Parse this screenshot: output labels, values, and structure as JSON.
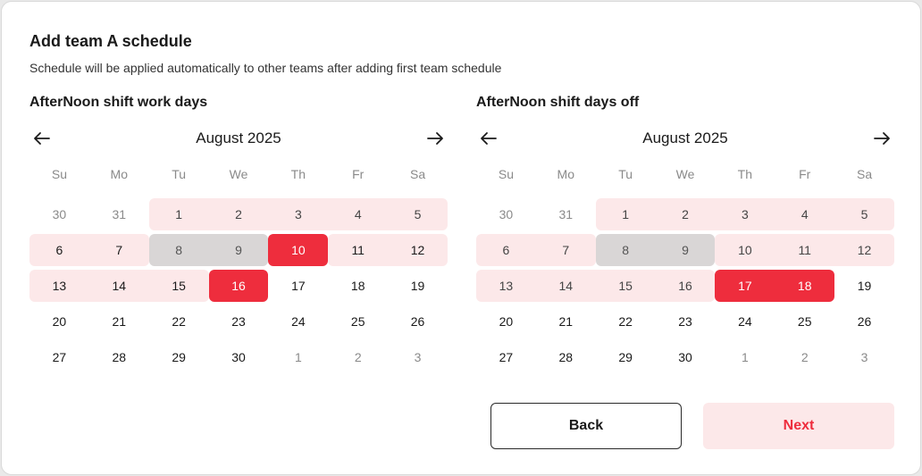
{
  "header": {
    "title": "Add team A schedule",
    "subtitle": "Schedule will be applied automatically to other teams after adding first team schedule"
  },
  "calendars": [
    {
      "label": "AfterNoon shift work days",
      "month": "August 2025",
      "weekdays": [
        "Su",
        "Mo",
        "Tu",
        "We",
        "Th",
        "Fr",
        "Sa"
      ],
      "days": [
        {
          "d": "30",
          "muted": true
        },
        {
          "d": "31",
          "muted": true
        },
        {
          "d": "1",
          "state": "sel"
        },
        {
          "d": "2",
          "state": "sel"
        },
        {
          "d": "3",
          "state": "sel"
        },
        {
          "d": "4",
          "state": "sel"
        },
        {
          "d": "5",
          "state": "sel"
        },
        {
          "d": "6",
          "state": "sel"
        },
        {
          "d": "7",
          "state": "sel"
        },
        {
          "d": "8",
          "state": "gray"
        },
        {
          "d": "9",
          "state": "gray"
        },
        {
          "d": "10",
          "state": "red"
        },
        {
          "d": "11",
          "state": "sel"
        },
        {
          "d": "12",
          "state": "sel"
        },
        {
          "d": "13",
          "state": "sel"
        },
        {
          "d": "14",
          "state": "sel"
        },
        {
          "d": "15",
          "state": "sel"
        },
        {
          "d": "16",
          "state": "red"
        },
        {
          "d": "17"
        },
        {
          "d": "18"
        },
        {
          "d": "19"
        },
        {
          "d": "20"
        },
        {
          "d": "21"
        },
        {
          "d": "22"
        },
        {
          "d": "23"
        },
        {
          "d": "24"
        },
        {
          "d": "25"
        },
        {
          "d": "26"
        },
        {
          "d": "27"
        },
        {
          "d": "28"
        },
        {
          "d": "29"
        },
        {
          "d": "30"
        },
        {
          "d": "1",
          "muted": true
        },
        {
          "d": "2",
          "muted": true
        },
        {
          "d": "3",
          "muted": true
        }
      ]
    },
    {
      "label": "AfterNoon shift days off",
      "month": "August 2025",
      "weekdays": [
        "Su",
        "Mo",
        "Tu",
        "We",
        "Th",
        "Fr",
        "Sa"
      ],
      "days": [
        {
          "d": "30",
          "muted": true
        },
        {
          "d": "31",
          "muted": true
        },
        {
          "d": "1",
          "state": "sel"
        },
        {
          "d": "2",
          "state": "sel"
        },
        {
          "d": "3",
          "state": "sel"
        },
        {
          "d": "4",
          "state": "sel"
        },
        {
          "d": "5",
          "state": "sel"
        },
        {
          "d": "6",
          "state": "sel"
        },
        {
          "d": "7",
          "state": "sel"
        },
        {
          "d": "8",
          "state": "gray"
        },
        {
          "d": "9",
          "state": "gray"
        },
        {
          "d": "10",
          "state": "sel"
        },
        {
          "d": "11",
          "state": "sel"
        },
        {
          "d": "12",
          "state": "sel"
        },
        {
          "d": "13",
          "state": "sel"
        },
        {
          "d": "14",
          "state": "sel"
        },
        {
          "d": "15",
          "state": "sel"
        },
        {
          "d": "16",
          "state": "sel"
        },
        {
          "d": "17",
          "state": "red"
        },
        {
          "d": "18",
          "state": "red"
        },
        {
          "d": "19"
        },
        {
          "d": "20"
        },
        {
          "d": "21"
        },
        {
          "d": "22"
        },
        {
          "d": "23"
        },
        {
          "d": "24"
        },
        {
          "d": "25"
        },
        {
          "d": "26"
        },
        {
          "d": "27"
        },
        {
          "d": "28"
        },
        {
          "d": "29"
        },
        {
          "d": "30"
        },
        {
          "d": "1",
          "muted": true
        },
        {
          "d": "2",
          "muted": true
        },
        {
          "d": "3",
          "muted": true
        }
      ]
    }
  ],
  "icons": {
    "prev": "arrow-left-icon",
    "next": "arrow-right-icon"
  },
  "buttons": {
    "back": "Back",
    "next": "Next"
  },
  "colors": {
    "accent": "#ee2d3d",
    "selected_bg": "#fce8e9",
    "gray_bg": "#d9d6d6"
  }
}
